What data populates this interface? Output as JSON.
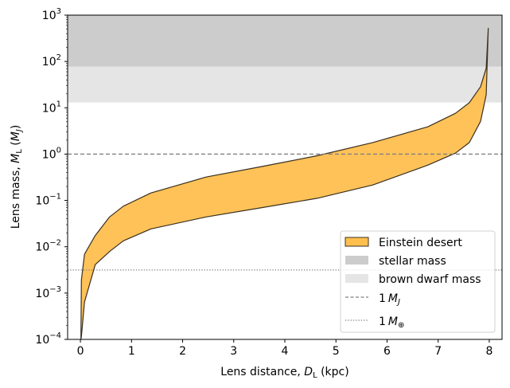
{
  "chart_data": {
    "type": "area",
    "xlabel": "Lens distance, D_L (kpc)",
    "xlabel_parts": {
      "pre": "Lens distance, ",
      "var": "D",
      "sub": "L",
      "post": " (kpc)"
    },
    "ylabel": "Lens mass, M_L (M_J)",
    "ylabel_parts": {
      "pre": "Lens mass, ",
      "var": "M",
      "sub": "L",
      "post": " (",
      "unit": "M",
      "unit_sub": "J",
      "close": ")"
    },
    "xlim": [
      -0.25,
      8.25
    ],
    "ylim": [
      0.0001,
      1000
    ],
    "yscale": "log",
    "xticks": [
      "0",
      "1",
      "2",
      "3",
      "4",
      "5",
      "6",
      "7",
      "8"
    ],
    "yticks": [
      -4,
      -3,
      -2,
      -1,
      0,
      1,
      2,
      3
    ],
    "grid": false,
    "legend_placement": "lower-right",
    "series": [
      {
        "name": "Einstein desert",
        "kind": "band",
        "color": "#ffbf4f",
        "edge": "#3a3020",
        "x": [
          0.01,
          0.02,
          0.08,
          0.29,
          0.57,
          0.84,
          1.38,
          2.46,
          3.55,
          4.63,
          5.72,
          6.8,
          7.34,
          7.61,
          7.83,
          7.94,
          7.98
        ],
        "upper": [
          0.0001,
          0.0019,
          0.0069,
          0.0175,
          0.044,
          0.075,
          0.145,
          0.32,
          0.54,
          0.92,
          1.78,
          3.9,
          7.6,
          12.9,
          28.6,
          72,
          520
        ],
        "lower": [
          0.0001,
          0.000115,
          0.00064,
          0.0041,
          0.0079,
          0.0134,
          0.0243,
          0.044,
          0.07,
          0.111,
          0.215,
          0.58,
          1.05,
          1.78,
          5.1,
          19.2,
          520
        ]
      },
      {
        "name": "stellar mass",
        "kind": "hspan",
        "y0": 77,
        "y1": 1000,
        "color": "#cccccc"
      },
      {
        "name": "brown dwarf mass",
        "kind": "hspan",
        "y0": 13,
        "y1": 77,
        "color": "#e5e5e5"
      },
      {
        "name": "1 M_J",
        "label_num": "1",
        "label_var": "M",
        "label_sub": "J",
        "kind": "hline",
        "y": 1,
        "style": "dashed",
        "color": "#808080"
      },
      {
        "name": "1 M_⊕",
        "label_num": "1",
        "label_var": "M",
        "label_sub": "⊕",
        "kind": "hline",
        "y": 0.00315,
        "style": "dotted",
        "color": "#808080"
      }
    ]
  }
}
